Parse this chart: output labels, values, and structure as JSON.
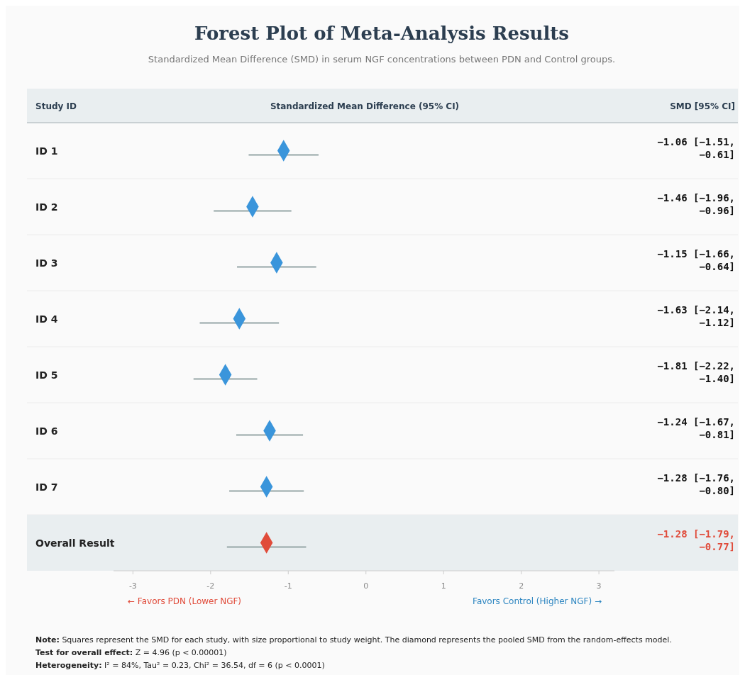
{
  "chart_data": {
    "type": "scatter",
    "orientation": "horizontal",
    "title": "Forest Plot of Meta-Analysis Results",
    "subtitle": "Standardized Mean Difference (SMD) in serum NGF concentrations between PDN and Control groups.",
    "xlabel": "Standardized Mean Difference (95% CI)",
    "categories": [
      "ID 1",
      "ID 2",
      "ID 3",
      "ID 4",
      "ID 5",
      "ID 6",
      "ID 7",
      "Overall Result"
    ],
    "values": [
      -1.06,
      -1.46,
      -1.15,
      -1.63,
      -1.81,
      -1.24,
      -1.28,
      -1.28
    ],
    "errors": [
      [
        -1.51,
        -0.61
      ],
      [
        -1.96,
        -0.96
      ],
      [
        -1.66,
        -0.64
      ],
      [
        -2.14,
        -1.12
      ],
      [
        -2.22,
        -1.4
      ],
      [
        -1.67,
        -0.81
      ],
      [
        -1.76,
        -0.8
      ],
      [
        -1.79,
        -0.77
      ]
    ],
    "colors": [
      "#3a95db",
      "#3a95db",
      "#3a95db",
      "#3a95db",
      "#3a95db",
      "#3a95db",
      "#3a95db",
      "#e04b3a"
    ],
    "value_labels": [
      "−1.06 [−1.51, −0.61]",
      "−1.46 [−1.96, −0.96]",
      "−1.15 [−1.66, −0.64]",
      "−1.63 [−2.14, −1.12]",
      "−1.81 [−2.22, −1.40]",
      "−1.24 [−1.67, −0.81]",
      "−1.28 [−1.76, −0.80]",
      "−1.28 [−1.79, −0.77]"
    ],
    "marker": "diamond",
    "xlim": [
      -3.25,
      3.2
    ],
    "xticks": [
      {
        "value": -3,
        "label": "-3"
      },
      {
        "value": -2,
        "label": "-2"
      },
      {
        "value": -1,
        "label": "-1"
      },
      0,
      1,
      2,
      3
    ],
    "annotations": [
      "Study ID",
      "SMD [95% CI]",
      "← Favors PDN (Lower NGF)",
      "Favors Control (Higher NGF) →",
      "Note: Squares represent the SMD for each study, with size proportional to study weight. The diamond represents the pooled SMD from the random-effects model.",
      "Test for overall effect: Z = 4.96 (p < 0.00001)",
      "Heterogeneity: I² = 84%, Tau² = 0.23, Chi² = 36.54, df = 6 (p < 0.0001)"
    ]
  }
}
